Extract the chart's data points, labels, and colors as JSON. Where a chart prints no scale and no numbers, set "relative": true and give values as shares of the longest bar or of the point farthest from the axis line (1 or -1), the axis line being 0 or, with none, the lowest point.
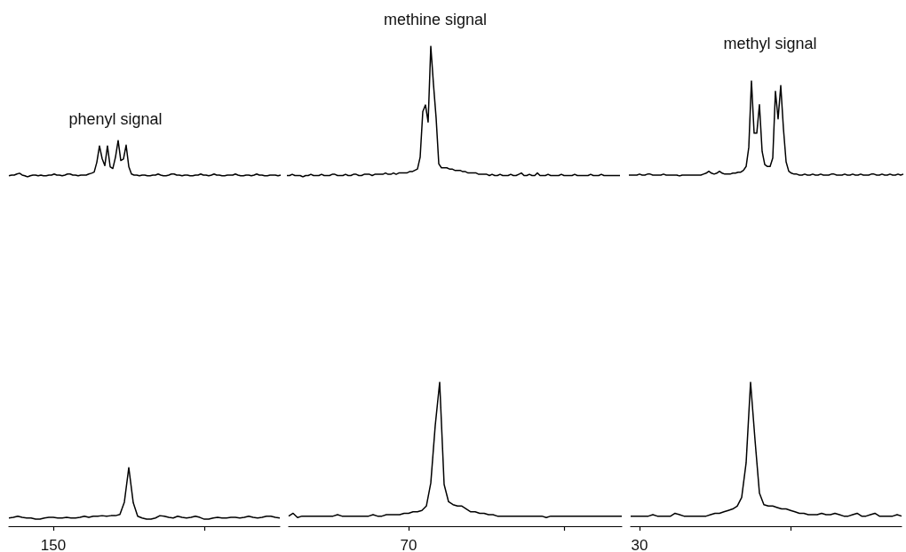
{
  "chart_data": [
    {
      "type": "line",
      "title": "phenyl signal",
      "relative": true,
      "categories": [
        null,
        null,
        null,
        null,
        null,
        null,
        null,
        null,
        null,
        null,
        null,
        null,
        null,
        null,
        null,
        null,
        null,
        null,
        null,
        null,
        null,
        null,
        null,
        null,
        null,
        null,
        null,
        null,
        null,
        null,
        null,
        null,
        null,
        null,
        null,
        null,
        null,
        null,
        null,
        null,
        null,
        null,
        null,
        null,
        null,
        null,
        null,
        null,
        null,
        null,
        null,
        null,
        null,
        null,
        null,
        null,
        null,
        null,
        null,
        null,
        null,
        null,
        null,
        null,
        null,
        null,
        null,
        null,
        null,
        null,
        null,
        null,
        null,
        null,
        null,
        null,
        null,
        null,
        null,
        null,
        null,
        null,
        null,
        null,
        null,
        null,
        null,
        null,
        null,
        null,
        null,
        null,
        null,
        null,
        null,
        null,
        null,
        null,
        null,
        null,
        null,
        null,
        null
      ],
      "series": [
        {
          "color": "#000000",
          "values": [
            0.03,
            0.05,
            0.05,
            0.08,
            0.1,
            0.05,
            0.03,
            0,
            0.03,
            0.05,
            0.05,
            0.03,
            0.05,
            0.03,
            0.03,
            0.05,
            0.05,
            0.08,
            0.05,
            0.05,
            0.03,
            0.05,
            0.08,
            0.08,
            0.05,
            0.05,
            0.03,
            0.05,
            0.05,
            0.05,
            0.08,
            0.1,
            0.13,
            0.4,
            0.85,
            0.5,
            0.31,
            0.85,
            0.28,
            0.23,
            0.54,
            1,
            0.45,
            0.49,
            0.87,
            0.28,
            0.08,
            0.05,
            0.05,
            0.03,
            0.05,
            0.05,
            0.03,
            0.03,
            0.05,
            0.05,
            0.08,
            0.05,
            0.03,
            0.03,
            0.05,
            0.08,
            0.08,
            0.05,
            0.05,
            0.03,
            0.05,
            0.05,
            0.03,
            0.03,
            0.05,
            0.05,
            0.08,
            0.05,
            0.05,
            0.03,
            0.05,
            0.08,
            0.05,
            0.05,
            0.03,
            0.03,
            0.05,
            0.05,
            0.05,
            0.08,
            0.05,
            0.03,
            0.03,
            0.05,
            0.05,
            0.03,
            0.05,
            0.08,
            0.05,
            0.05,
            0.03,
            0.03,
            0.05,
            0.05,
            0.05,
            0.03,
            0.05
          ]
        }
      ]
    },
    {
      "type": "line",
      "title": "methine signal",
      "relative": true,
      "categories": [
        null,
        null,
        null,
        null,
        null,
        null,
        null,
        null,
        null,
        null,
        null,
        null,
        null,
        null,
        null,
        null,
        null,
        null,
        null,
        null,
        null,
        null,
        null,
        null,
        null,
        null,
        null,
        null,
        null,
        null,
        null,
        null,
        null,
        null,
        null,
        null,
        null,
        null,
        null,
        null,
        null,
        null,
        null,
        null,
        null,
        null,
        null,
        null,
        null,
        null,
        null,
        null,
        null,
        null,
        null,
        null,
        null,
        null,
        null,
        null,
        null,
        null,
        null,
        null,
        null,
        null,
        null,
        null,
        null,
        null,
        null,
        null,
        null,
        null,
        null,
        null,
        null,
        null,
        null,
        null,
        null,
        null,
        null,
        null,
        null,
        null,
        null,
        null,
        null,
        null,
        null,
        null,
        null,
        null,
        null,
        null,
        null,
        null,
        null,
        null,
        null,
        null,
        null,
        null,
        null,
        null,
        null,
        null,
        null,
        null,
        null,
        null,
        null,
        null,
        null,
        null,
        null,
        null,
        null,
        null,
        null,
        null,
        null,
        null,
        null,
        null
      ],
      "series": [
        {
          "color": "#000000",
          "values": [
            0.01,
            0.01,
            0.02,
            0.01,
            0.01,
            0.01,
            0,
            0.01,
            0.01,
            0.02,
            0.01,
            0.01,
            0.01,
            0.02,
            0.01,
            0.01,
            0.01,
            0.02,
            0.02,
            0.01,
            0.01,
            0.01,
            0.02,
            0.01,
            0.01,
            0.02,
            0.02,
            0.01,
            0.01,
            0.02,
            0.02,
            0.02,
            0.01,
            0.02,
            0.02,
            0.02,
            0.02,
            0.03,
            0.02,
            0.02,
            0.03,
            0.02,
            0.03,
            0.03,
            0.03,
            0.03,
            0.04,
            0.04,
            0.05,
            0.06,
            0.15,
            0.5,
            0.55,
            0.42,
            1,
            0.71,
            0.45,
            0.1,
            0.07,
            0.07,
            0.07,
            0.06,
            0.06,
            0.05,
            0.05,
            0.05,
            0.04,
            0.04,
            0.03,
            0.03,
            0.03,
            0.03,
            0.02,
            0.02,
            0.02,
            0.02,
            0.01,
            0.02,
            0.01,
            0.01,
            0.02,
            0.01,
            0.01,
            0.01,
            0.02,
            0.01,
            0.01,
            0.02,
            0.03,
            0.01,
            0.01,
            0.02,
            0.01,
            0.01,
            0.03,
            0.01,
            0.01,
            0.01,
            0.02,
            0.01,
            0.01,
            0.01,
            0.01,
            0.02,
            0.01,
            0.01,
            0.01,
            0.01,
            0.02,
            0.01,
            0.01,
            0.01,
            0.01,
            0.01,
            0.02,
            0.01,
            0.01,
            0.01,
            0.02,
            0.01,
            0.01,
            0.01,
            0.01,
            0.01,
            0.01,
            0.01
          ]
        }
      ]
    },
    {
      "type": "line",
      "title": "methyl signal",
      "relative": true,
      "categories": [
        null,
        null,
        null,
        null,
        null,
        null,
        null,
        null,
        null,
        null,
        null,
        null,
        null,
        null,
        null,
        null,
        null,
        null,
        null,
        null,
        null,
        null,
        null,
        null,
        null,
        null,
        null,
        null,
        null,
        null,
        null,
        null,
        null,
        null,
        null,
        null,
        null,
        null,
        null,
        null,
        null,
        null,
        null,
        null,
        null,
        null,
        null,
        null,
        null,
        null,
        null,
        null,
        null,
        null,
        null,
        null,
        null,
        null,
        null,
        null,
        null,
        null,
        null,
        null,
        null,
        null,
        null,
        null,
        null,
        null,
        null,
        null,
        null,
        null,
        null,
        null,
        null,
        null,
        null,
        null,
        null,
        null,
        null,
        null,
        null,
        null,
        null,
        null,
        null,
        null,
        null,
        null,
        null,
        null,
        null,
        null,
        null,
        null,
        null,
        null,
        null,
        null,
        null,
        null
      ],
      "series": [
        {
          "color": "#000000",
          "values": [
            0.01,
            0.01,
            0.01,
            0.01,
            0.02,
            0.01,
            0.01,
            0.02,
            0.02,
            0.01,
            0.01,
            0.01,
            0.01,
            0.02,
            0.01,
            0.01,
            0.01,
            0.01,
            0.01,
            0,
            0.01,
            0.01,
            0.01,
            0.01,
            0.01,
            0.01,
            0.01,
            0.01,
            0.02,
            0.03,
            0.05,
            0.03,
            0.02,
            0.03,
            0.05,
            0.03,
            0.02,
            0.02,
            0.02,
            0.03,
            0.03,
            0.04,
            0.04,
            0.06,
            0.1,
            0.3,
            1,
            0.45,
            0.45,
            0.75,
            0.26,
            0.12,
            0.1,
            0.1,
            0.19,
            0.89,
            0.6,
            0.95,
            0.5,
            0.15,
            0.05,
            0.03,
            0.02,
            0.02,
            0.01,
            0.01,
            0.02,
            0.01,
            0.01,
            0.02,
            0.01,
            0.01,
            0.02,
            0.01,
            0.01,
            0.01,
            0.02,
            0.02,
            0.01,
            0.01,
            0.01,
            0.02,
            0.01,
            0.01,
            0.02,
            0.01,
            0.01,
            0.02,
            0.01,
            0.01,
            0.01,
            0.02,
            0.02,
            0.01,
            0.01,
            0.02,
            0.01,
            0.01,
            0.02,
            0.01,
            0.01,
            0.02,
            0.01,
            0.02
          ]
        }
      ]
    },
    {
      "type": "line",
      "relative": true,
      "annotations": [
        "150"
      ],
      "categories": [
        null,
        null,
        null,
        null,
        null,
        null,
        null,
        null,
        null,
        null,
        null,
        null,
        null,
        null,
        null,
        null,
        null,
        null,
        null,
        null,
        null,
        null,
        null,
        null,
        null,
        null,
        null,
        null,
        null,
        null,
        null,
        null,
        null,
        null,
        null,
        null,
        null,
        null,
        null,
        null,
        null,
        null,
        null,
        null,
        null,
        null,
        null,
        null,
        null,
        null,
        null,
        null,
        null,
        null,
        null,
        null,
        null,
        null,
        null,
        null,
        null,
        null
      ],
      "series": [
        {
          "color": "#000000",
          "values": [
            0.14,
            0.15,
            0.17,
            0.15,
            0.14,
            0.14,
            0.12,
            0.12,
            0.14,
            0.15,
            0.15,
            0.14,
            0.14,
            0.15,
            0.14,
            0.14,
            0.15,
            0.17,
            0.15,
            0.17,
            0.17,
            0.18,
            0.17,
            0.18,
            0.18,
            0.2,
            0.41,
            1,
            0.4,
            0.17,
            0.14,
            0.12,
            0.12,
            0.14,
            0.18,
            0.17,
            0.15,
            0.14,
            0.17,
            0.15,
            0.14,
            0.15,
            0.17,
            0.15,
            0.12,
            0.12,
            0.14,
            0.15,
            0.14,
            0.14,
            0.15,
            0.15,
            0.14,
            0.15,
            0.17,
            0.15,
            0.14,
            0.15,
            0.17,
            0.17,
            0.15,
            0.14
          ]
        }
      ]
    },
    {
      "type": "line",
      "relative": true,
      "annotations": [
        "70"
      ],
      "categories": [
        null,
        null,
        null,
        null,
        null,
        null,
        null,
        null,
        null,
        null,
        null,
        null,
        null,
        null,
        null,
        null,
        null,
        null,
        null,
        null,
        null,
        null,
        null,
        null,
        null,
        null,
        null,
        null,
        null,
        null,
        null,
        null,
        null,
        null,
        null,
        null,
        null,
        null,
        null,
        null,
        null,
        null,
        null,
        null,
        null,
        null,
        null,
        null,
        null,
        null,
        null,
        null,
        null,
        null,
        null,
        null,
        null,
        null,
        null,
        null,
        null,
        null,
        null,
        null,
        null,
        null,
        null,
        null,
        null,
        null,
        null,
        null,
        null,
        null,
        null,
        null
      ],
      "series": [
        {
          "color": "#000000",
          "values": [
            0.07,
            0.09,
            0.06,
            0.07,
            0.07,
            0.07,
            0.07,
            0.07,
            0.07,
            0.07,
            0.07,
            0.08,
            0.07,
            0.07,
            0.07,
            0.07,
            0.07,
            0.07,
            0.07,
            0.08,
            0.07,
            0.07,
            0.08,
            0.08,
            0.08,
            0.08,
            0.09,
            0.09,
            0.1,
            0.1,
            0.11,
            0.14,
            0.3,
            0.7,
            1,
            0.29,
            0.17,
            0.15,
            0.14,
            0.14,
            0.12,
            0.1,
            0.1,
            0.09,
            0.09,
            0.08,
            0.08,
            0.07,
            0.07,
            0.07,
            0.07,
            0.07,
            0.07,
            0.07,
            0.07,
            0.07,
            0.07,
            0.07,
            0.06,
            0.07,
            0.07,
            0.07,
            0.07,
            0.07,
            0.07,
            0.07,
            0.07,
            0.07,
            0.07,
            0.07,
            0.07,
            0.07,
            0.07,
            0.07,
            0.07,
            0.07
          ]
        }
      ]
    },
    {
      "type": "line",
      "relative": true,
      "annotations": [
        "30"
      ],
      "categories": [
        null,
        null,
        null,
        null,
        null,
        null,
        null,
        null,
        null,
        null,
        null,
        null,
        null,
        null,
        null,
        null,
        null,
        null,
        null,
        null,
        null,
        null,
        null,
        null,
        null,
        null,
        null,
        null,
        null,
        null,
        null,
        null,
        null,
        null,
        null,
        null,
        null,
        null,
        null,
        null,
        null,
        null,
        null,
        null,
        null,
        null,
        null,
        null,
        null,
        null,
        null,
        null,
        null,
        null,
        null,
        null,
        null,
        null,
        null,
        null,
        null,
        null
      ],
      "series": [
        {
          "color": "#000000",
          "values": [
            0.07,
            0.07,
            0.07,
            0.07,
            0.07,
            0.08,
            0.07,
            0.07,
            0.07,
            0.07,
            0.09,
            0.08,
            0.07,
            0.07,
            0.07,
            0.07,
            0.07,
            0.07,
            0.08,
            0.09,
            0.09,
            0.1,
            0.11,
            0.12,
            0.14,
            0.2,
            0.44,
            1,
            0.6,
            0.23,
            0.15,
            0.14,
            0.14,
            0.13,
            0.12,
            0.12,
            0.11,
            0.1,
            0.09,
            0.09,
            0.08,
            0.08,
            0.08,
            0.09,
            0.08,
            0.08,
            0.09,
            0.08,
            0.07,
            0.07,
            0.08,
            0.09,
            0.07,
            0.07,
            0.08,
            0.09,
            0.07,
            0.07,
            0.07,
            0.07,
            0.08,
            0.07
          ]
        }
      ]
    }
  ]
}
